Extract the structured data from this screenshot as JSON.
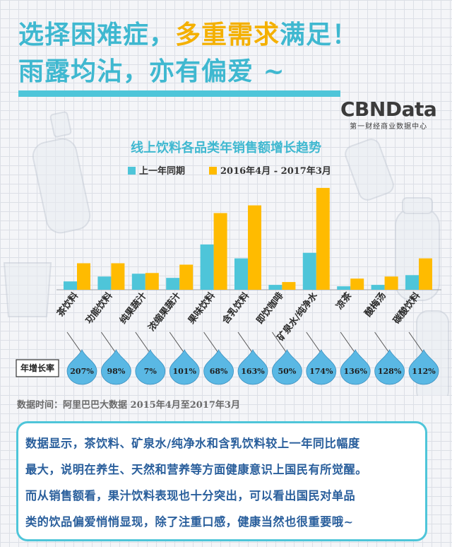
{
  "headline": {
    "line1_a": "选择困难症，",
    "line1_b": "多重需求",
    "line1_c": "满足！",
    "line2": "雨露均沾，亦有偏爱 ~"
  },
  "logo": {
    "main": "CBNData",
    "sub": "第一财经商业数据中心"
  },
  "colors": {
    "prev_year": "#4ec5d9",
    "current": "#ffbb00",
    "accent": "#4ec5d9",
    "headline": "#3fb8d0",
    "highlight": "#f4b000",
    "drop": "#5ab8e4",
    "summary_text": "#2a5f9c"
  },
  "chart_data": {
    "type": "bar",
    "title": "线上饮料各品类年销售额增长趋势",
    "categories": [
      "茶饮料",
      "功能饮料",
      "纯果蔬汁",
      "浓缩果蔬汁",
      "果味饮料",
      "含乳饮料",
      "即饮咖啡",
      "矿泉水/纯净水",
      "凉茶",
      "酸梅汤",
      "碳酸饮料"
    ],
    "series": [
      {
        "name": "上一年同期",
        "values": [
          12,
          19,
          23,
          17,
          65,
          45,
          7,
          53,
          5,
          7,
          21
        ]
      },
      {
        "name": "2016年4月 - 2017年3月",
        "values": [
          38,
          38,
          24,
          36,
          110,
          121,
          11,
          146,
          16,
          19,
          45
        ]
      }
    ],
    "growth_label": "年增长率",
    "growth_rates": [
      "207%",
      "98%",
      "7%",
      "101%",
      "68%",
      "163%",
      "50%",
      "174%",
      "136%",
      "128%",
      "112%"
    ],
    "ylim": [
      0,
      150
    ],
    "legend": "top-left"
  },
  "source": "数据时间：阿里巴巴大数据  2015年4月至2017年3月",
  "summary": [
    "数据显示，茶饮料、矿泉水/纯净水和含乳饮料较上一年同比幅度",
    "最大，说明在养生、天然和营养等方面健康意识上国民有所觉醒。",
    "而从销售额看，果汁饮料表现也十分突出，可以看出国民对单品",
    "类的饮品偏爱悄悄显现，除了注重口感，健康当然也很重要哦~"
  ]
}
